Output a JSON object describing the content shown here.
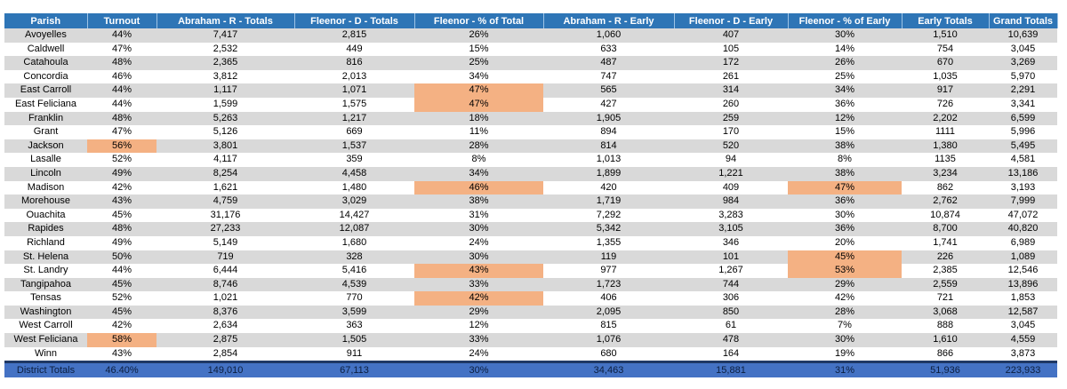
{
  "columns": [
    "Parish",
    "Turnout",
    "Abraham - R - Totals",
    "Fleenor - D - Totals",
    "Fleenor - % of Total",
    "Abraham - R - Early",
    "Fleenor - D - Early",
    "Fleenor - % of Early",
    "Early Totals",
    "Grand Totals"
  ],
  "rows": [
    [
      "Avoyelles",
      "44%",
      "7,417",
      "2,815",
      "26%",
      "1,060",
      "407",
      "30%",
      "1,510",
      "10,639"
    ],
    [
      "Caldwell",
      "47%",
      "2,532",
      "449",
      "15%",
      "633",
      "105",
      "14%",
      "754",
      "3,045"
    ],
    [
      "Catahoula",
      "48%",
      "2,365",
      "816",
      "25%",
      "487",
      "172",
      "26%",
      "670",
      "3,269"
    ],
    [
      "Concordia",
      "46%",
      "3,812",
      "2,013",
      "34%",
      "747",
      "261",
      "25%",
      "1,035",
      "5,970"
    ],
    [
      "East Carroll",
      "44%",
      "1,117",
      "1,071",
      "47%",
      "565",
      "314",
      "34%",
      "917",
      "2,291"
    ],
    [
      "East Feliciana",
      "44%",
      "1,599",
      "1,575",
      "47%",
      "427",
      "260",
      "36%",
      "726",
      "3,341"
    ],
    [
      "Franklin",
      "48%",
      "5,263",
      "1,217",
      "18%",
      "1,905",
      "259",
      "12%",
      "2,202",
      "6,599"
    ],
    [
      "Grant",
      "47%",
      "5,126",
      "669",
      "11%",
      "894",
      "170",
      "15%",
      "1111",
      "5,996"
    ],
    [
      "Jackson",
      "56%",
      "3,801",
      "1,537",
      "28%",
      "814",
      "520",
      "38%",
      "1,380",
      "5,495"
    ],
    [
      "Lasalle",
      "52%",
      "4,117",
      "359",
      "8%",
      "1,013",
      "94",
      "8%",
      "1135",
      "4,581"
    ],
    [
      "Lincoln",
      "49%",
      "8,254",
      "4,458",
      "34%",
      "1,899",
      "1,221",
      "38%",
      "3,234",
      "13,186"
    ],
    [
      "Madison",
      "42%",
      "1,621",
      "1,480",
      "46%",
      "420",
      "409",
      "47%",
      "862",
      "3,193"
    ],
    [
      "Morehouse",
      "43%",
      "4,759",
      "3,029",
      "38%",
      "1,719",
      "984",
      "36%",
      "2,762",
      "7,999"
    ],
    [
      "Ouachita",
      "45%",
      "31,176",
      "14,427",
      "31%",
      "7,292",
      "3,283",
      "30%",
      "10,874",
      "47,072"
    ],
    [
      "Rapides",
      "48%",
      "27,233",
      "12,087",
      "30%",
      "5,342",
      "3,105",
      "36%",
      "8,700",
      "40,820"
    ],
    [
      "Richland",
      "49%",
      "5,149",
      "1,680",
      "24%",
      "1,355",
      "346",
      "20%",
      "1,741",
      "6,989"
    ],
    [
      "St. Helena",
      "50%",
      "719",
      "328",
      "30%",
      "119",
      "101",
      "45%",
      "226",
      "1,089"
    ],
    [
      "St. Landry",
      "44%",
      "6,444",
      "5,416",
      "43%",
      "977",
      "1,267",
      "53%",
      "2,385",
      "12,546"
    ],
    [
      "Tangipahoa",
      "45%",
      "8,746",
      "4,539",
      "33%",
      "1,723",
      "744",
      "29%",
      "2,559",
      "13,896"
    ],
    [
      "Tensas",
      "52%",
      "1,021",
      "770",
      "42%",
      "406",
      "306",
      "42%",
      "721",
      "1,853"
    ],
    [
      "Washington",
      "45%",
      "8,376",
      "3,599",
      "29%",
      "2,095",
      "850",
      "28%",
      "3,068",
      "12,587"
    ],
    [
      "West Carroll",
      "42%",
      "2,634",
      "363",
      "12%",
      "815",
      "61",
      "7%",
      "888",
      "3,045"
    ],
    [
      "West Feliciana",
      "58%",
      "2,875",
      "1,505",
      "33%",
      "1,076",
      "478",
      "30%",
      "1,610",
      "4,559"
    ],
    [
      "Winn",
      "43%",
      "2,854",
      "911",
      "24%",
      "680",
      "164",
      "19%",
      "866",
      "3,873"
    ]
  ],
  "highlights": [
    [
      4,
      4
    ],
    [
      5,
      4
    ],
    [
      8,
      1
    ],
    [
      11,
      4
    ],
    [
      11,
      7
    ],
    [
      16,
      7
    ],
    [
      17,
      4
    ],
    [
      17,
      7
    ],
    [
      19,
      4
    ],
    [
      22,
      1
    ]
  ],
  "totals": [
    "District Totals",
    "46.40%",
    "149,010",
    "67,113",
    "30%",
    "34,463",
    "15,881",
    "31%",
    "51,936",
    "223,933"
  ],
  "colors": {
    "header_bg": "#2e75b6",
    "band_gray": "#d9d9d9",
    "highlight": "#f4b183",
    "totals_bg": "#4472c4"
  }
}
